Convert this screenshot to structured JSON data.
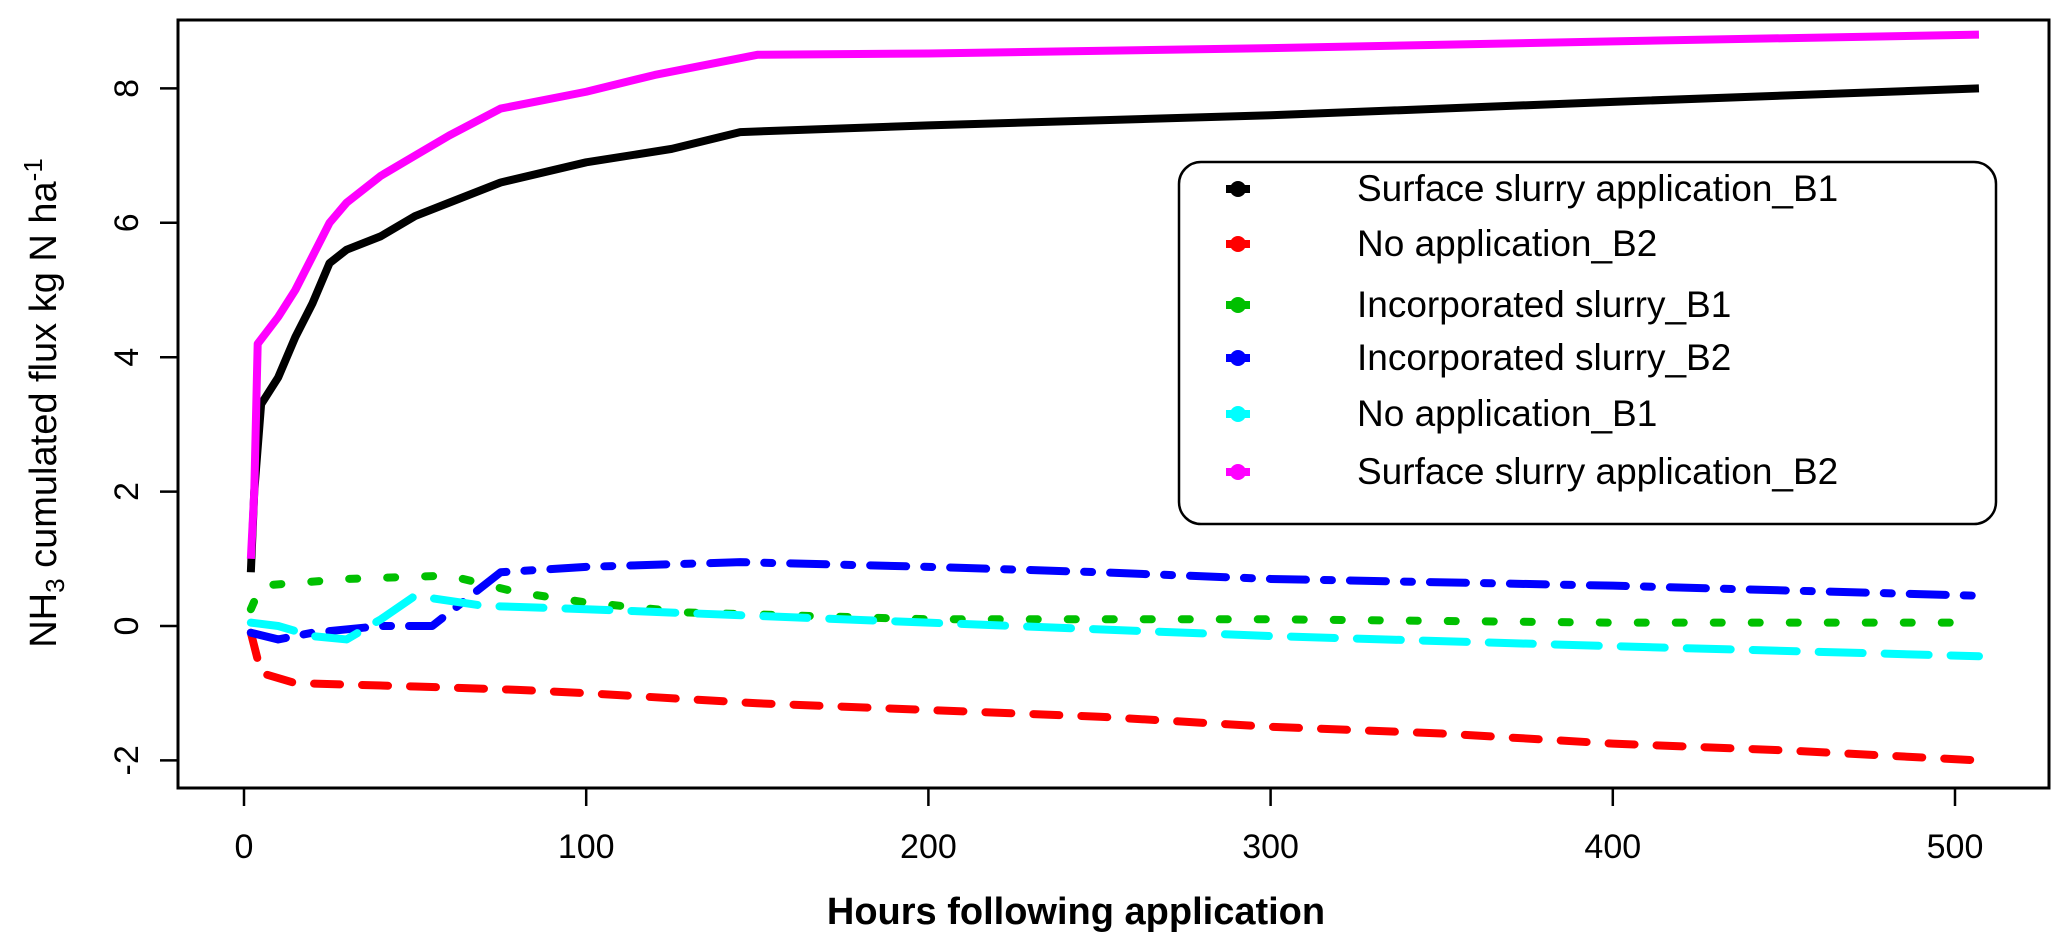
{
  "chart_data": {
    "type": "line",
    "title": "",
    "xlabel": "Hours following application",
    "ylabel": {
      "main": "NH",
      "sub": "3",
      "rest": " cumulated flux kg N ha",
      "sup": "-1"
    },
    "xlim": [
      -5,
      522
    ],
    "ylim": [
      -2.4,
      9.0
    ],
    "xticks": [
      0,
      100,
      200,
      300,
      400,
      500
    ],
    "yticks": [
      -2,
      0,
      2,
      4,
      6,
      8
    ],
    "grid": false,
    "legend_position": "top-right",
    "series": [
      {
        "name": "Surface slurry application_B1",
        "color": "#000000",
        "style": "solid",
        "x": [
          2,
          3,
          5,
          10,
          15,
          20,
          25,
          30,
          40,
          50,
          60,
          75,
          100,
          125,
          145,
          200,
          300,
          400,
          507
        ],
        "y": [
          0.8,
          2.0,
          3.3,
          3.7,
          4.3,
          4.8,
          5.4,
          5.6,
          5.8,
          6.1,
          6.3,
          6.6,
          6.9,
          7.1,
          7.35,
          7.45,
          7.6,
          7.8,
          8.0
        ]
      },
      {
        "name": "No application_B2",
        "color": "#ff0000",
        "style": "dashed",
        "x": [
          2,
          5,
          15,
          50,
          80,
          100,
          150,
          200,
          250,
          300,
          350,
          400,
          450,
          507
        ],
        "y": [
          -0.1,
          -0.7,
          -0.85,
          -0.9,
          -0.95,
          -1.0,
          -1.15,
          -1.25,
          -1.35,
          -1.5,
          -1.6,
          -1.75,
          -1.85,
          -2.0
        ]
      },
      {
        "name": "Incorporated slurry_B1",
        "color": "#00c000",
        "style": "dotted",
        "x": [
          2,
          5,
          30,
          60,
          80,
          100,
          130,
          200,
          300,
          400,
          507
        ],
        "y": [
          0.25,
          0.6,
          0.7,
          0.75,
          0.5,
          0.35,
          0.2,
          0.1,
          0.1,
          0.05,
          0.05
        ]
      },
      {
        "name": "Incorporated slurry_B2",
        "color": "#0000ff",
        "style": "dashdot",
        "x": [
          2,
          10,
          20,
          40,
          55,
          65,
          75,
          100,
          145,
          200,
          250,
          300,
          400,
          507
        ],
        "y": [
          -0.1,
          -0.2,
          -0.1,
          0,
          0,
          0.4,
          0.8,
          0.88,
          0.95,
          0.88,
          0.8,
          0.7,
          0.6,
          0.45
        ]
      },
      {
        "name": "No application_B1",
        "color": "#00ffff",
        "style": "longdash",
        "x": [
          2,
          10,
          20,
          30,
          40,
          50,
          70,
          100,
          150,
          200,
          300,
          400,
          507
        ],
        "y": [
          0.05,
          0.0,
          -0.15,
          -0.2,
          0.1,
          0.45,
          0.3,
          0.25,
          0.15,
          0.05,
          -0.15,
          -0.3,
          -0.45
        ]
      },
      {
        "name": "Surface slurry application_B2",
        "color": "#ff00ff",
        "style": "solid",
        "x": [
          2,
          3,
          4,
          10,
          15,
          20,
          25,
          30,
          40,
          50,
          60,
          75,
          100,
          120,
          150,
          200,
          300,
          400,
          507
        ],
        "y": [
          1.0,
          2.0,
          4.2,
          4.6,
          5.0,
          5.5,
          6.0,
          6.3,
          6.7,
          7.0,
          7.3,
          7.7,
          7.95,
          8.2,
          8.5,
          8.52,
          8.6,
          8.7,
          8.8
        ]
      }
    ]
  }
}
